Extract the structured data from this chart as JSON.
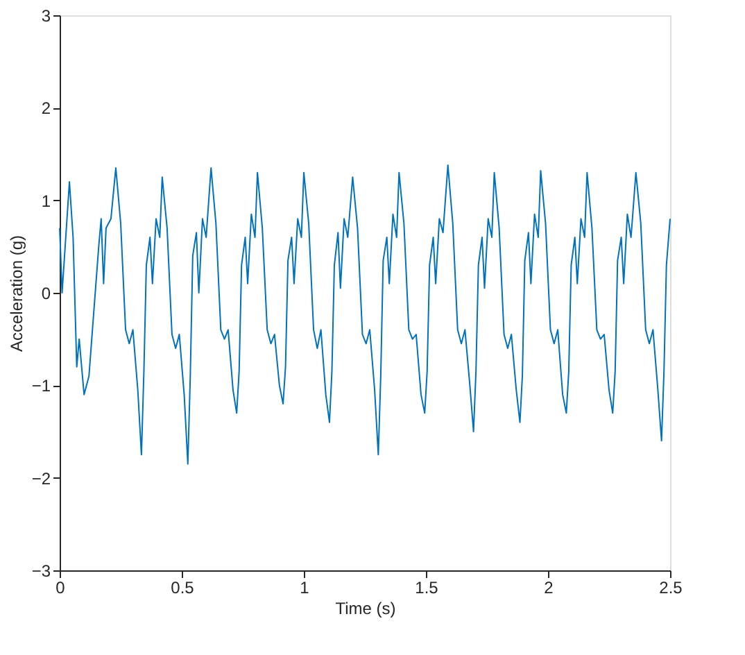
{
  "chart_data": {
    "type": "line",
    "xlabel": "Time (s)",
    "ylabel": "Acceleration (g)",
    "xlim": [
      0,
      2.5
    ],
    "ylim": [
      -3,
      3
    ],
    "xticks": [
      0,
      0.5,
      1,
      1.5,
      2,
      2.5
    ],
    "yticks": [
      -3,
      -2,
      -1,
      0,
      1,
      2,
      3
    ],
    "grid": false,
    "marker": "none",
    "line_style": "solid",
    "series": [
      {
        "color": "#0072bd",
        "x": [
          0,
          0.01,
          0.025,
          0.04,
          0.055,
          0.07,
          0.08,
          0.1,
          0.12,
          0.14,
          0.16,
          0.17,
          0.18,
          0.19,
          0.21,
          0.23,
          0.25,
          0.27,
          0.285,
          0.3,
          0.32,
          0.335,
          0.345,
          0.355,
          0.37,
          0.38,
          0.395,
          0.41,
          0.42,
          0.44,
          0.46,
          0.475,
          0.49,
          0.51,
          0.525,
          0.535,
          0.545,
          0.56,
          0.57,
          0.585,
          0.6,
          0.62,
          0.64,
          0.66,
          0.675,
          0.69,
          0.71,
          0.725,
          0.735,
          0.745,
          0.76,
          0.77,
          0.785,
          0.8,
          0.81,
          0.83,
          0.85,
          0.865,
          0.88,
          0.9,
          0.915,
          0.925,
          0.935,
          0.95,
          0.96,
          0.975,
          0.99,
          1.0,
          1.02,
          1.04,
          1.055,
          1.07,
          1.09,
          1.105,
          1.115,
          1.125,
          1.14,
          1.15,
          1.165,
          1.18,
          1.2,
          1.22,
          1.24,
          1.255,
          1.27,
          1.29,
          1.305,
          1.315,
          1.325,
          1.34,
          1.35,
          1.365,
          1.38,
          1.39,
          1.41,
          1.43,
          1.445,
          1.46,
          1.48,
          1.495,
          1.505,
          1.515,
          1.53,
          1.54,
          1.555,
          1.57,
          1.59,
          1.61,
          1.63,
          1.645,
          1.66,
          1.68,
          1.695,
          1.705,
          1.715,
          1.73,
          1.74,
          1.755,
          1.77,
          1.78,
          1.8,
          1.82,
          1.835,
          1.85,
          1.87,
          1.885,
          1.895,
          1.905,
          1.92,
          1.93,
          1.945,
          1.96,
          1.97,
          1.99,
          2.01,
          2.025,
          2.04,
          2.06,
          2.075,
          2.085,
          2.095,
          2.11,
          2.12,
          2.135,
          2.15,
          2.16,
          2.18,
          2.2,
          2.215,
          2.23,
          2.25,
          2.265,
          2.275,
          2.285,
          2.3,
          2.31,
          2.325,
          2.34,
          2.36,
          2.38,
          2.4,
          2.415,
          2.43,
          2.45,
          2.465,
          2.475,
          2.485,
          2.5
        ],
        "values": [
          0.7,
          0.0,
          0.6,
          1.2,
          0.6,
          -0.8,
          -0.5,
          -1.1,
          -0.9,
          -0.2,
          0.5,
          0.8,
          0.1,
          0.7,
          0.8,
          1.35,
          0.75,
          -0.4,
          -0.55,
          -0.4,
          -1.05,
          -1.75,
          -0.85,
          0.3,
          0.6,
          0.1,
          0.8,
          0.6,
          1.25,
          0.7,
          -0.45,
          -0.6,
          -0.45,
          -1.1,
          -1.85,
          -0.9,
          0.4,
          0.65,
          0.0,
          0.8,
          0.6,
          1.35,
          0.75,
          -0.4,
          -0.5,
          -0.4,
          -1.05,
          -1.3,
          -0.85,
          0.3,
          0.6,
          0.1,
          0.85,
          0.6,
          1.3,
          0.7,
          -0.4,
          -0.55,
          -0.45,
          -1.0,
          -1.2,
          -0.8,
          0.35,
          0.6,
          0.1,
          0.8,
          0.6,
          1.3,
          0.75,
          -0.4,
          -0.6,
          -0.4,
          -1.1,
          -1.4,
          -0.85,
          0.3,
          0.65,
          0.05,
          0.8,
          0.6,
          1.25,
          0.7,
          -0.45,
          -0.55,
          -0.4,
          -1.05,
          -1.75,
          -0.9,
          0.35,
          0.6,
          0.1,
          0.85,
          0.6,
          1.3,
          0.75,
          -0.4,
          -0.5,
          -0.45,
          -1.1,
          -1.3,
          -0.85,
          0.3,
          0.6,
          0.1,
          0.8,
          0.65,
          1.38,
          0.75,
          -0.4,
          -0.55,
          -0.4,
          -1.0,
          -1.5,
          -0.85,
          0.3,
          0.6,
          0.05,
          0.8,
          0.6,
          1.3,
          0.7,
          -0.45,
          -0.6,
          -0.45,
          -1.05,
          -1.4,
          -0.9,
          0.35,
          0.65,
          0.1,
          0.85,
          0.6,
          1.32,
          0.75,
          -0.4,
          -0.55,
          -0.4,
          -1.1,
          -1.3,
          -0.85,
          0.3,
          0.6,
          0.1,
          0.8,
          0.6,
          1.3,
          0.7,
          -0.4,
          -0.5,
          -0.45,
          -1.05,
          -1.3,
          -0.85,
          0.35,
          0.6,
          0.1,
          0.85,
          0.6,
          1.3,
          0.75,
          -0.4,
          -0.55,
          -0.4,
          -1.05,
          -1.6,
          -0.85,
          0.3,
          0.8
        ]
      }
    ]
  }
}
